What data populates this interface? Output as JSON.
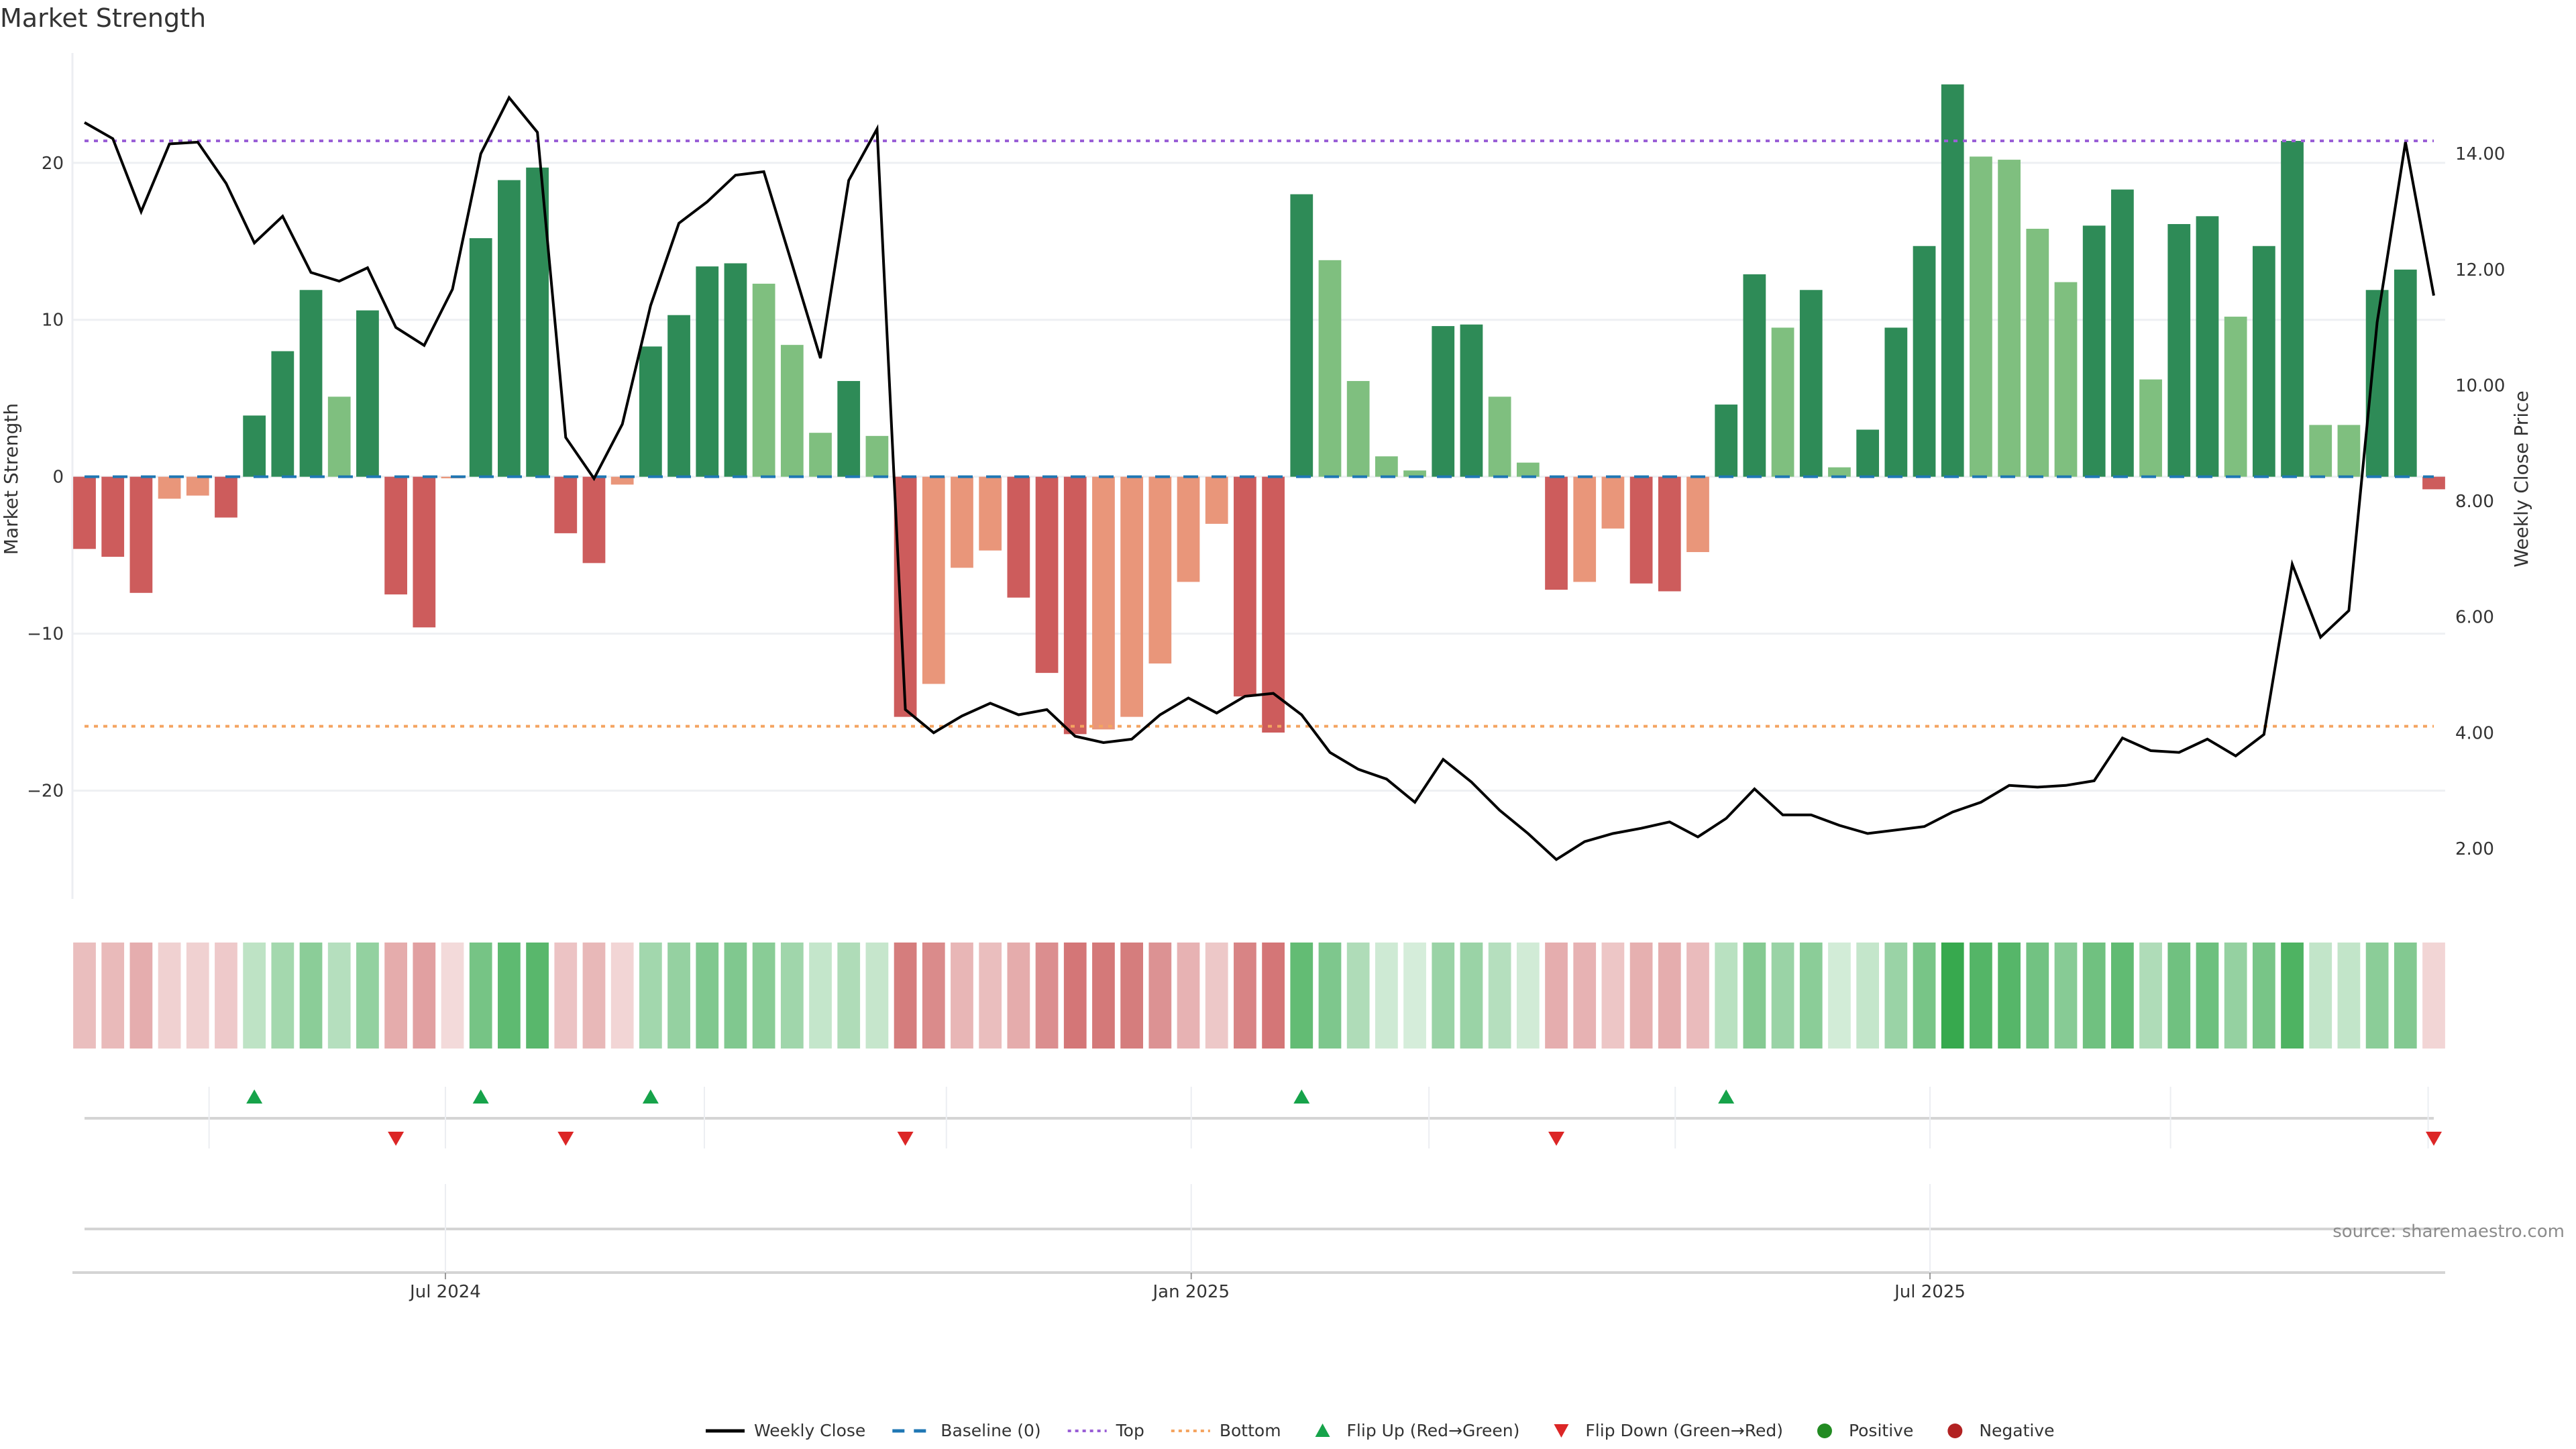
{
  "chart_data": {
    "type": "bar",
    "title": "Market Strength",
    "ylabel": "Market Strength",
    "y2label": "Weekly Close Price",
    "ylim": [
      -26.9,
      27.0
    ],
    "y2lim": [
      1.13,
      15.74
    ],
    "yticks": [
      -20,
      -10,
      0,
      10,
      20
    ],
    "ytick_labels": [
      "−20",
      "−10",
      "0",
      "10",
      "20"
    ],
    "y2ticks": [
      2,
      4,
      6,
      8,
      10,
      12,
      14
    ],
    "y2tick_labels": [
      "2.00",
      "4.00",
      "6.00",
      "8.00",
      "10.00",
      "12.00",
      "14.00"
    ],
    "x_ticks": [
      {
        "label": "Jul 2024",
        "week_index": 12.75
      },
      {
        "label": "Jan 2025",
        "week_index": 39.1
      },
      {
        "label": "Jul 2025",
        "week_index": 65.2
      }
    ],
    "month_gridlines_week_index": [
      4.4,
      12.75,
      21.9,
      30.45,
      39.1,
      47.5,
      56.2,
      65.2,
      73.7,
      82.8
    ],
    "grid": true,
    "legend_position": "bottom",
    "top_level": 21.4,
    "bottom_level": -15.9,
    "baseline": 0,
    "strength": [
      -4.6,
      -5.1,
      -7.4,
      -1.4,
      -1.2,
      -2.6,
      3.9,
      8.0,
      11.9,
      5.1,
      10.6,
      -7.5,
      -9.6,
      -0.1,
      15.2,
      18.9,
      19.7,
      -3.6,
      -5.5,
      -0.5,
      8.3,
      10.3,
      13.4,
      13.6,
      12.3,
      8.4,
      2.8,
      6.1,
      2.6,
      -15.3,
      -13.2,
      -5.8,
      -4.7,
      -7.7,
      -12.5,
      -16.4,
      -16.1,
      -15.3,
      -11.9,
      -6.7,
      -3.0,
      -14.0,
      -16.3,
      18.0,
      13.8,
      6.1,
      1.3,
      0.4,
      9.6,
      9.7,
      5.1,
      0.9,
      -7.2,
      -6.7,
      -3.3,
      -6.8,
      -7.3,
      -4.8,
      4.6,
      12.9,
      9.5,
      11.9,
      0.6,
      3.0,
      9.5,
      14.7,
      25.0,
      20.4,
      20.2,
      15.8,
      12.4,
      16.0,
      18.3,
      6.2,
      16.1,
      16.6,
      10.2,
      14.7,
      21.4,
      3.3,
      3.3,
      11.9,
      13.2,
      -0.8
    ],
    "strength_weakening": [
      false,
      false,
      false,
      true,
      true,
      false,
      false,
      false,
      false,
      true,
      false,
      false,
      false,
      true,
      false,
      false,
      false,
      false,
      false,
      true,
      false,
      false,
      false,
      false,
      true,
      true,
      true,
      false,
      true,
      false,
      true,
      true,
      true,
      false,
      false,
      false,
      true,
      true,
      true,
      true,
      true,
      false,
      false,
      false,
      true,
      true,
      true,
      true,
      false,
      false,
      true,
      true,
      false,
      true,
      true,
      false,
      false,
      true,
      false,
      false,
      true,
      false,
      true,
      false,
      false,
      false,
      false,
      true,
      true,
      true,
      true,
      false,
      false,
      true,
      false,
      false,
      true,
      false,
      false,
      true,
      true,
      false,
      false,
      false
    ],
    "weekly_close": [
      14.54,
      14.26,
      13.0,
      14.17,
      14.2,
      13.49,
      12.46,
      12.92,
      11.95,
      11.8,
      12.03,
      11.0,
      10.69,
      11.66,
      14.0,
      14.97,
      14.37,
      9.1,
      8.39,
      9.33,
      11.38,
      12.8,
      13.17,
      13.63,
      13.69,
      12.09,
      10.47,
      13.54,
      14.43,
      4.4,
      4.0,
      4.29,
      4.51,
      4.31,
      4.4,
      3.94,
      3.83,
      3.89,
      4.31,
      4.6,
      4.34,
      4.63,
      4.68,
      4.31,
      3.66,
      3.37,
      3.2,
      2.8,
      3.54,
      3.15,
      2.66,
      2.26,
      1.81,
      2.12,
      2.26,
      2.35,
      2.46,
      2.2,
      2.52,
      3.03,
      2.58,
      2.58,
      2.4,
      2.26,
      2.32,
      2.38,
      2.63,
      2.8,
      3.09,
      3.06,
      3.09,
      3.17,
      3.91,
      3.69,
      3.66,
      3.89,
      3.6,
      3.97,
      6.91,
      5.65,
      6.11,
      11.09,
      14.2,
      11.55
    ],
    "flip_up_week_index": [
      6,
      14,
      20,
      43,
      58
    ],
    "flip_down_week_index": [
      11,
      17,
      29,
      52,
      83
    ],
    "colors": {
      "strong_positive": "#2e8b57",
      "weak_positive": "#7fbf7f",
      "strong_negative": "#cd5c5c",
      "weak_negative": "#e9967a",
      "heat_positive": "#2ca444",
      "heat_negative": "#c0393a",
      "weekly_close": "#000000",
      "baseline": "#1f77b4",
      "top": "#9a5fd6",
      "bottom": "#f4a460",
      "flip_up": "#16a34a",
      "flip_down": "#dc2626",
      "positive_dot": "#228b22",
      "negative_dot": "#b22222"
    },
    "legend": [
      {
        "label": "Weekly Close",
        "symbol": "line-solid",
        "color": "#000000"
      },
      {
        "label": "Baseline (0)",
        "symbol": "line-dashed",
        "color": "#1f77b4"
      },
      {
        "label": "Top",
        "symbol": "line-dotted",
        "color": "#9a5fd6"
      },
      {
        "label": "Bottom",
        "symbol": "line-dotted",
        "color": "#f4a460"
      },
      {
        "label": "Flip Up (Red→Green)",
        "symbol": "triangle-up",
        "color": "#16a34a"
      },
      {
        "label": "Flip Down (Green→Red)",
        "symbol": "triangle-down",
        "color": "#dc2626"
      },
      {
        "label": "Positive",
        "symbol": "dot",
        "color": "#228b22"
      },
      {
        "label": "Negative",
        "symbol": "dot",
        "color": "#b22222"
      }
    ],
    "source": "source: sharemaestro.com"
  }
}
